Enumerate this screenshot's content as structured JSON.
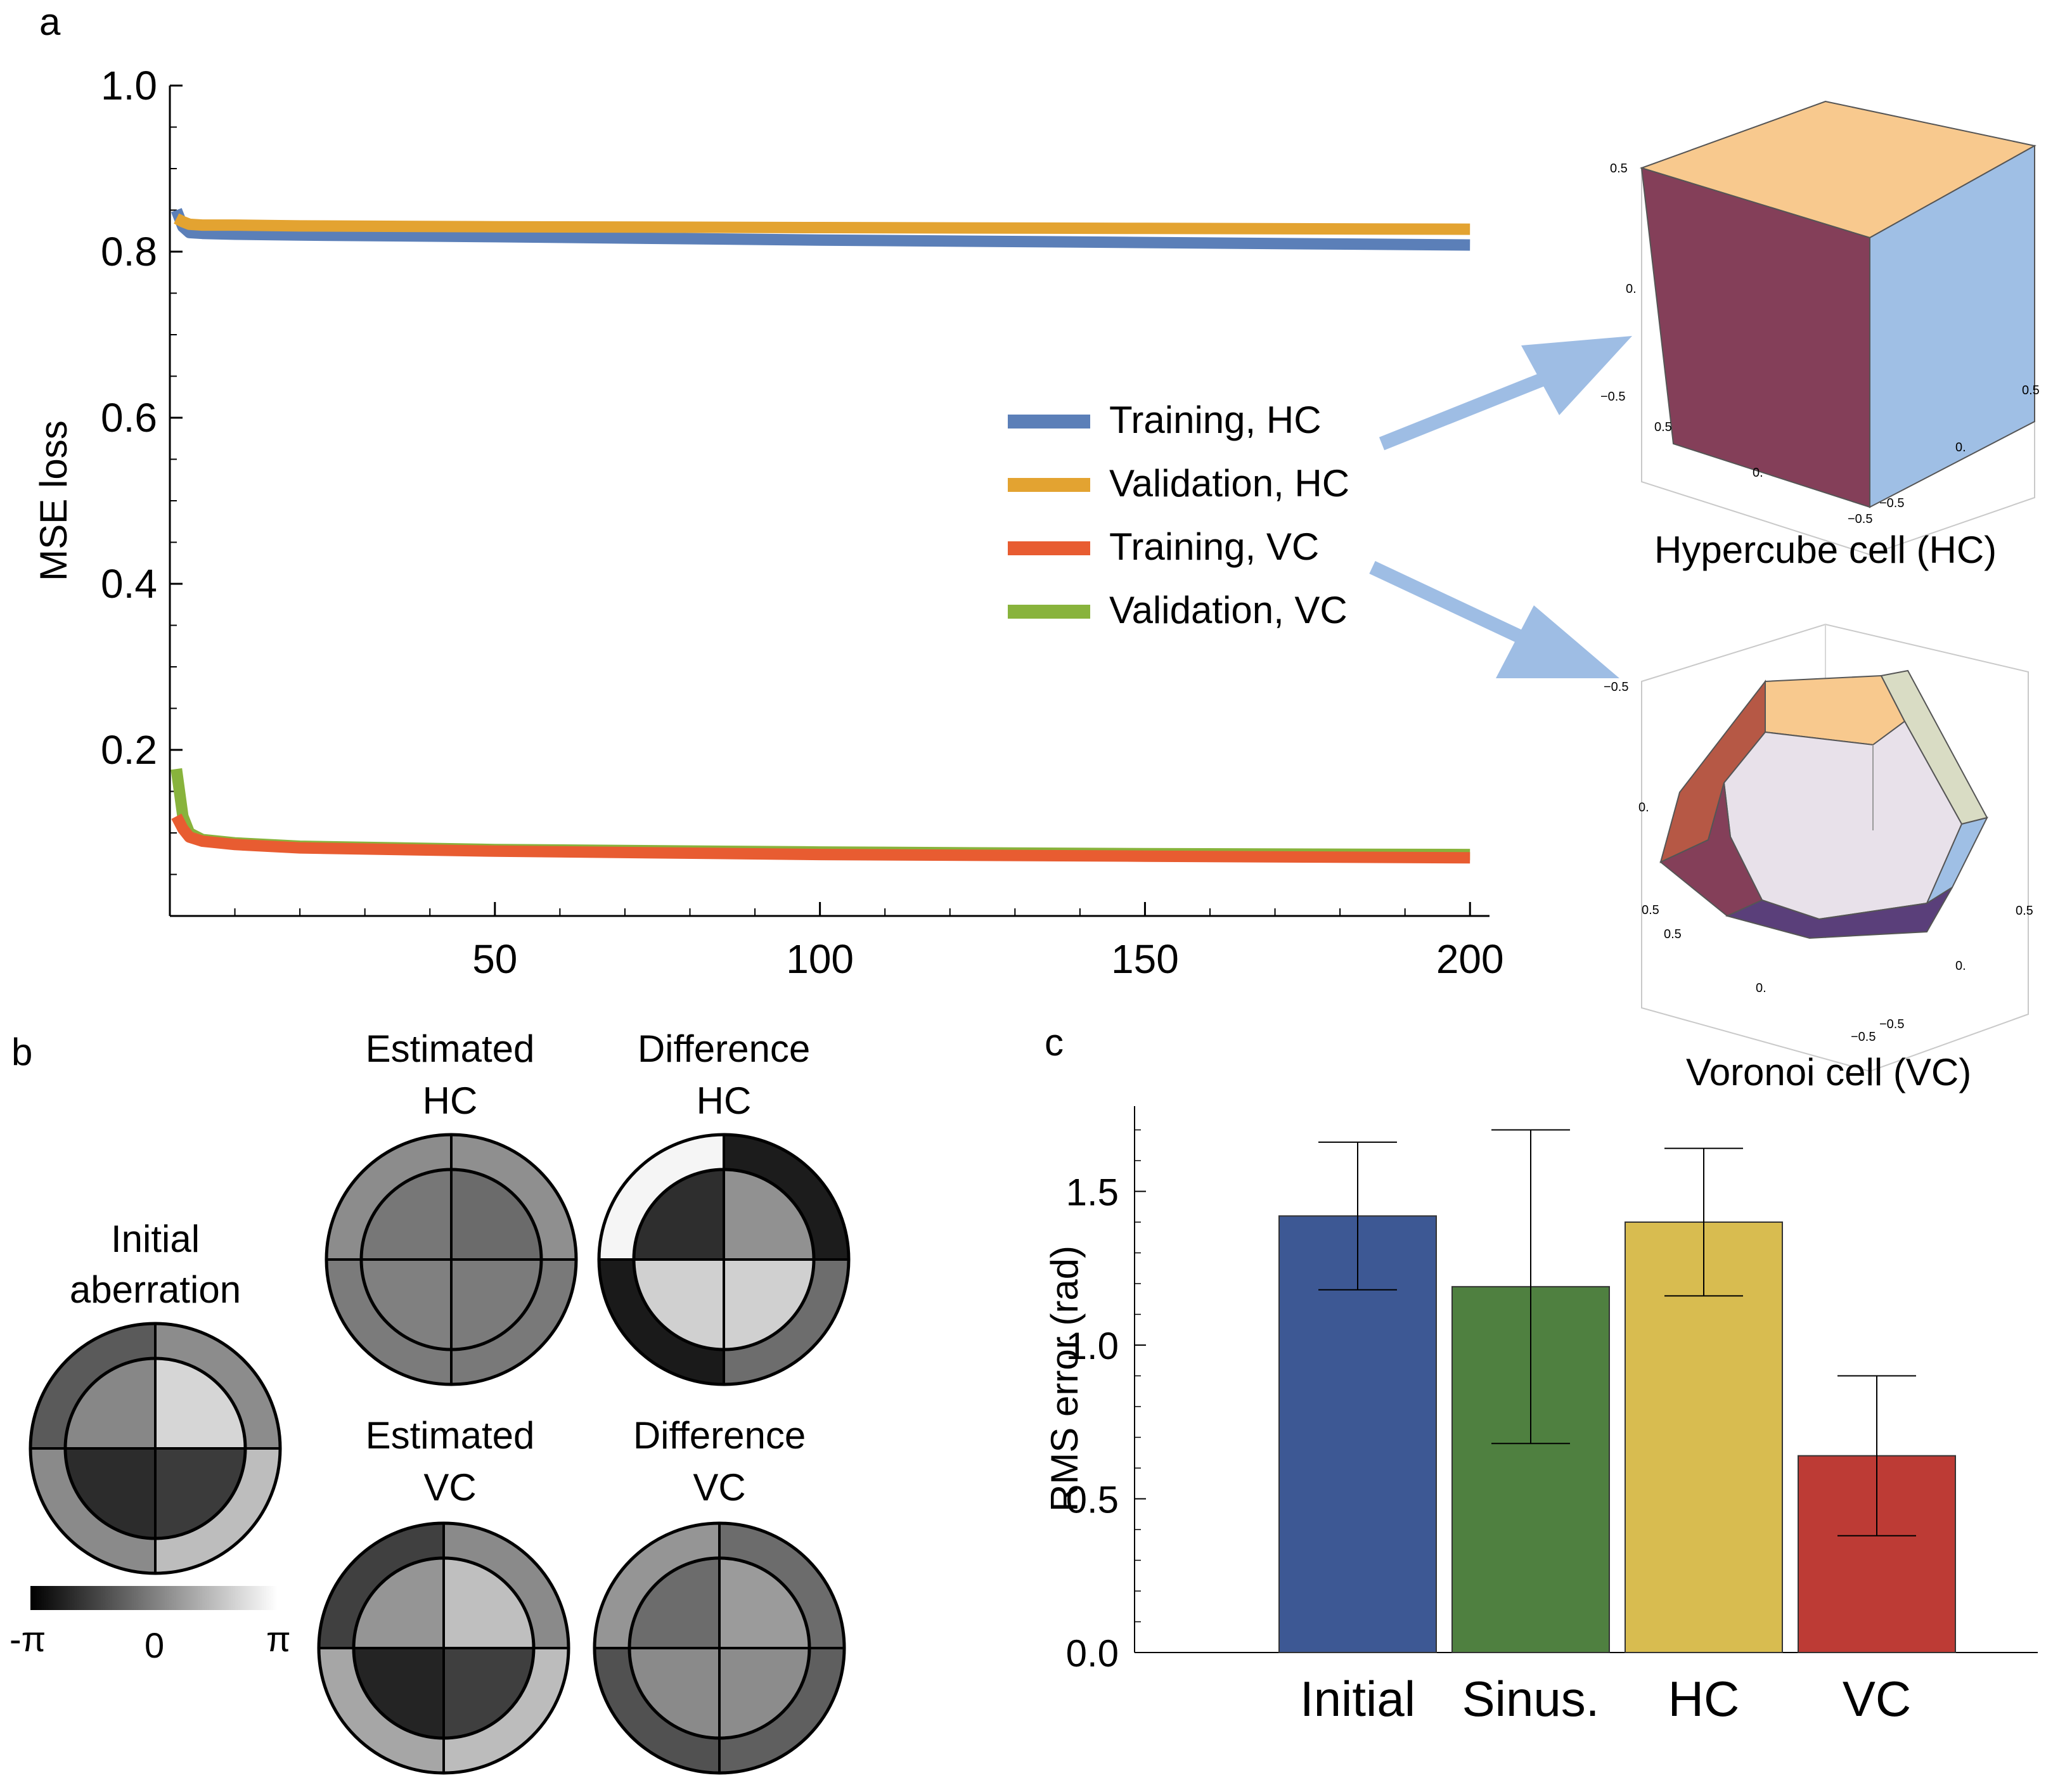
{
  "panels": {
    "a": "a",
    "b": "b",
    "c": "c"
  },
  "colors": {
    "training_hc": "#5b7fb8",
    "validation_hc": "#e3a331",
    "training_vc": "#e85c31",
    "validation_vc": "#88b33c",
    "arrow": "#9ebde4",
    "bar_initial": "#3d5894",
    "bar_sinus": "#4f8040",
    "bar_hc": "#d8bc50",
    "bar_vc": "#bd3b35"
  },
  "chart_data": [
    {
      "type": "line",
      "panel": "a",
      "ylabel": "MSE loss",
      "xlabel": "",
      "xlim": [
        0,
        203
      ],
      "ylim": [
        0,
        1.0
      ],
      "xticks": [
        "50",
        "100",
        "150",
        "200"
      ],
      "yticks": [
        "0.2",
        "0.4",
        "0.6",
        "0.8",
        "1.0"
      ],
      "series": [
        {
          "name": "Training, HC",
          "x": [
            1,
            2,
            3,
            5,
            10,
            20,
            50,
            100,
            150,
            200
          ],
          "values": [
            0.85,
            0.83,
            0.823,
            0.822,
            0.821,
            0.82,
            0.818,
            0.814,
            0.811,
            0.808
          ]
        },
        {
          "name": "Validation, HC",
          "x": [
            1,
            2,
            3,
            5,
            10,
            20,
            50,
            100,
            150,
            200
          ],
          "values": [
            0.84,
            0.836,
            0.833,
            0.832,
            0.832,
            0.831,
            0.83,
            0.829,
            0.828,
            0.827
          ]
        },
        {
          "name": "Training, VC",
          "x": [
            1,
            2,
            3,
            5,
            10,
            20,
            50,
            100,
            150,
            200
          ],
          "values": [
            0.12,
            0.105,
            0.095,
            0.09,
            0.086,
            0.082,
            0.078,
            0.074,
            0.072,
            0.07
          ]
        },
        {
          "name": "Validation, VC",
          "x": [
            1,
            2,
            3,
            5,
            10,
            20,
            50,
            100,
            150,
            200
          ],
          "values": [
            0.177,
            0.12,
            0.1,
            0.092,
            0.088,
            0.084,
            0.08,
            0.077,
            0.075,
            0.074
          ]
        }
      ]
    },
    {
      "type": "bar",
      "panel": "c",
      "ylabel": "RMS error (rad)",
      "xlabel": "",
      "ylim": [
        0,
        1.75
      ],
      "yticks": [
        "0.0",
        "0.5",
        "1.0",
        "1.5"
      ],
      "categories": [
        "Initial",
        "Sinus.",
        "HC",
        "VC"
      ],
      "values": [
        1.42,
        1.19,
        1.4,
        0.64
      ],
      "error_low": [
        1.18,
        0.68,
        1.16,
        0.38
      ],
      "error_high": [
        1.66,
        1.7,
        1.64,
        0.9
      ]
    }
  ],
  "cells": {
    "hypercube": {
      "caption": "Hypercube cell (HC)",
      "ticks": [
        "0.5",
        "0.",
        "−0.5",
        "0.5",
        "0.",
        "−0.5",
        "0.5",
        "0.",
        "−0.5"
      ]
    },
    "voronoi": {
      "caption": "Voronoi cell (VC)",
      "ticks": [
        "−0.5",
        "0.",
        "0.5",
        "0.5",
        "0.",
        "−0.5",
        "0.5",
        "0.",
        "−0.5"
      ]
    }
  },
  "phase_maps": {
    "initial": {
      "title_line1": "Initial",
      "title_line2": "aberration",
      "outer": [
        "#5a5a5a",
        "#8c8c8c",
        "#bdbdbd",
        "#8a8a8a"
      ],
      "inner": [
        "#878787",
        "#d6d6d6",
        "#3b3b3b",
        "#2c2c2c"
      ]
    },
    "est_hc": {
      "title_line1": "Estimated",
      "title_line2": "HC",
      "outer": [
        "#8c8c8c",
        "#8f8f8f",
        "#797979",
        "#7b7b7b"
      ],
      "inner": [
        "#777777",
        "#6b6b6b",
        "#7b7b7b",
        "#808080"
      ]
    },
    "diff_hc": {
      "title_line1": "Difference",
      "title_line2": "HC",
      "outer": [
        "#f5f5f5",
        "#1c1c1c",
        "#6d6d6d",
        "#1a1a1a"
      ],
      "inner": [
        "#2e2e2e",
        "#919191",
        "#d0d0d0",
        "#d0d0d0"
      ]
    },
    "est_vc": {
      "title_line1": "Estimated",
      "title_line2": "VC",
      "outer": [
        "#404040",
        "#8a8a8a",
        "#bcbcbc",
        "#a6a6a6"
      ],
      "inner": [
        "#959595",
        "#bfbfbf",
        "#3f3f3f",
        "#242424"
      ]
    },
    "diff_vc": {
      "title_line1": "Difference",
      "title_line2": "VC",
      "outer": [
        "#959595",
        "#6c6c6c",
        "#5f5f5f",
        "#515151"
      ],
      "inner": [
        "#6c6c6c",
        "#9b9b9b",
        "#8c8c8c",
        "#8a8a8a"
      ]
    }
  },
  "colorbar": {
    "min_label": "-π",
    "mid_label": "0",
    "max_label": "π"
  }
}
